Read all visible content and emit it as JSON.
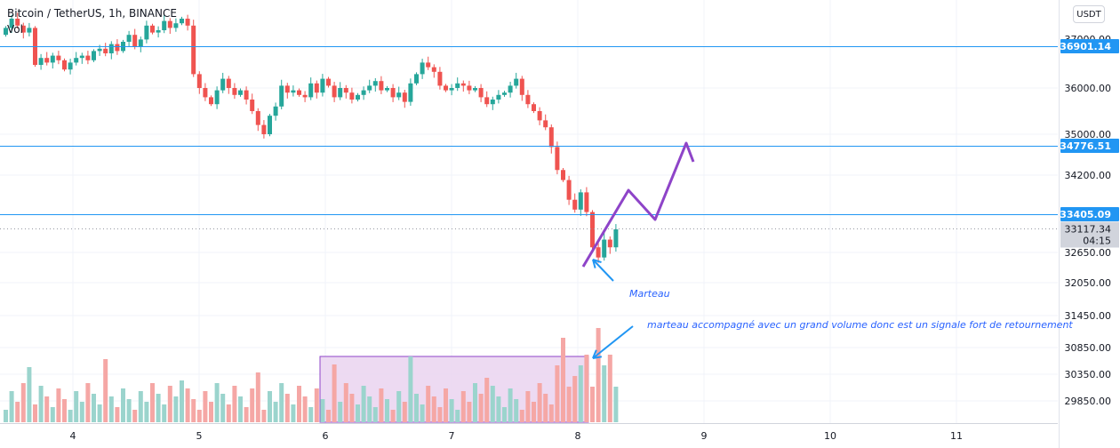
{
  "header": {
    "title": "Bitcoin / TetherUS, 1h, BINANCE",
    "indicator": "Vol",
    "currency_button": "USDT"
  },
  "colors": {
    "up": "#26a69a",
    "down": "#ef5350",
    "vol_up": "#9bd4cd",
    "vol_down": "#f5a7a5",
    "hline": "#2196f3",
    "label_bg": "#2196f3",
    "current_price_bg": "#d1d4dc",
    "drawing_purple": "#8e44c8",
    "arrow_blue": "#2196f3",
    "rect_fill": "#ead4f0",
    "rect_stroke": "#8e44c8"
  },
  "price_axis": {
    "ticks": [
      "37000.00",
      "36000.00",
      "35000.00",
      "34200.00",
      "32650.00",
      "32050.00",
      "31450.00",
      "30850.00",
      "30350.00",
      "29850.00"
    ],
    "tick_values": [
      37000,
      36000,
      35000,
      34200,
      32650,
      32050,
      31450,
      30850,
      30350,
      29850
    ]
  },
  "horizontal_levels": [
    {
      "label": "36901.14",
      "value": 36901.14
    },
    {
      "label": "34776.51",
      "value": 34776.51
    },
    {
      "label": "33405.09",
      "value": 33405.09
    }
  ],
  "current_price": {
    "label": "33117.34",
    "countdown": "04:15",
    "value": 33117.34
  },
  "time_axis": {
    "labels": [
      "4",
      "5",
      "6",
      "7",
      "8",
      "9",
      "10",
      "11"
    ]
  },
  "annotations": {
    "marteau": "Marteau",
    "volume_note": "marteau accompagné avec un grand volume donc est un signale fort de retournement"
  },
  "chart_data": {
    "type": "candlestick",
    "symbol": "Bitcoin / TetherUS",
    "interval": "1h",
    "exchange": "BINANCE",
    "y_unit": "USDT",
    "ylim": [
      29850,
      37400
    ],
    "x_day_labels": [
      "4",
      "5",
      "6",
      "7",
      "8",
      "9",
      "10",
      "11"
    ],
    "x_label_positions_hours": [
      0,
      24,
      48,
      72,
      96,
      120,
      144,
      168
    ],
    "horizontal_levels": [
      36901.14,
      34776.51,
      33405.09
    ],
    "last_price": 33117.34,
    "candles_close": [
      37300,
      37500,
      37350,
      37200,
      37300,
      36500,
      36650,
      36550,
      36700,
      36600,
      36400,
      36550,
      36650,
      36700,
      36600,
      36800,
      36850,
      36750,
      36950,
      36800,
      37000,
      37150,
      36900,
      37050,
      37350,
      37200,
      37250,
      37450,
      37300,
      37400,
      37500,
      37350,
      36300,
      36000,
      35800,
      35650,
      35950,
      36200,
      36000,
      35850,
      35950,
      35750,
      35500,
      35200,
      35000,
      35400,
      35600,
      36050,
      35900,
      35950,
      35850,
      35800,
      36100,
      35900,
      36200,
      36050,
      35800,
      36000,
      35900,
      35750,
      35850,
      35950,
      36050,
      36150,
      35950,
      36000,
      35800,
      35900,
      35700,
      36100,
      36300,
      36550,
      36450,
      36350,
      36050,
      35950,
      36000,
      36100,
      36050,
      35950,
      36000,
      35800,
      35650,
      35750,
      35850,
      35900,
      36050,
      36200,
      35850,
      35650,
      35500,
      35300,
      35150,
      34750,
      34300,
      34100,
      33700,
      33500,
      33850,
      33450,
      32750,
      32550,
      32900,
      32750,
      33100
    ]
  }
}
